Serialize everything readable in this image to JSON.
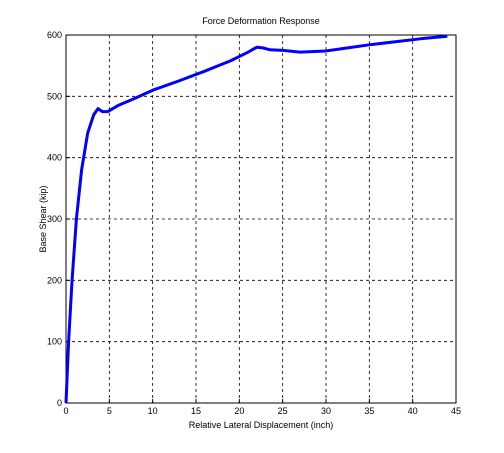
{
  "chart_data": {
    "type": "line",
    "title": "Force Deformation Response",
    "x_label": "Relative Lateral Displacement (inch)",
    "y_label": "Base Shear (kip)",
    "x": [
      0,
      0.3,
      0.7,
      1.2,
      1.8,
      2.5,
      3.2,
      3.7,
      4.2,
      4.8,
      6,
      8,
      10,
      13,
      16,
      19,
      21,
      22,
      22.7,
      23.5,
      25,
      27,
      30,
      32,
      35,
      38,
      41,
      44
    ],
    "series": [
      {
        "color": "#0000ff",
        "values": [
          0,
          100,
          200,
          300,
          380,
          440,
          470,
          480,
          475,
          475,
          485,
          497,
          510,
          525,
          541,
          558,
          572,
          580,
          579,
          576,
          575,
          572,
          574,
          578,
          584,
          589,
          594,
          598
        ]
      }
    ],
    "xlim": [
      0,
      45
    ],
    "xticks": [
      0,
      5,
      10,
      15,
      20,
      25,
      30,
      35,
      40,
      45
    ],
    "ylim": [
      0,
      600
    ],
    "yticks": [
      0,
      100,
      200,
      300,
      400,
      500,
      600
    ],
    "grid": true
  }
}
